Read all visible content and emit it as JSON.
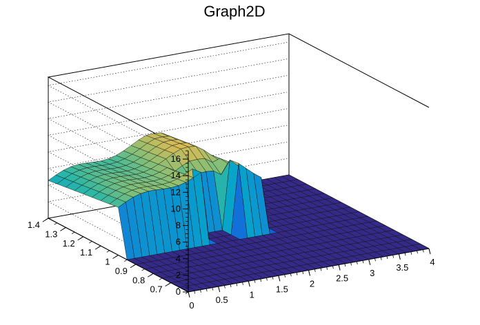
{
  "chart_data": {
    "type": "surface",
    "title": "Graph2D",
    "xlabel": "",
    "ylabel": "",
    "zlabel": "",
    "xlim": [
      0,
      4
    ],
    "ylim": [
      0.6,
      1.4
    ],
    "zlim": [
      0,
      17
    ],
    "x_ticks": [
      "0",
      "0.5",
      "1",
      "1.5",
      "2",
      "2.5",
      "3",
      "3.5",
      "4"
    ],
    "y_ticks": [
      "0.7",
      "0.8",
      "0.9",
      "1",
      "1.1",
      "1.2",
      "1.3",
      "1.4"
    ],
    "z_ticks": [
      "0",
      "2",
      "4",
      "6",
      "8",
      "10",
      "12",
      "14",
      "16"
    ],
    "colormap": [
      "#352a87",
      "#0f5cdd",
      "#1481d6",
      "#06a4ca",
      "#2eb7a4",
      "#87bf77",
      "#d1bb59",
      "#fec832",
      "#f9fb0e"
    ],
    "surface": {
      "x_range": [
        0,
        4
      ],
      "y_range": [
        0.6,
        1.4
      ],
      "nx": 32,
      "ny": 16,
      "description": "plateau of ~6-10 for x < ~2.3 and y > ~0.95, zero elsewhere, with a hole near x 1.5-2"
    },
    "grid": true
  }
}
